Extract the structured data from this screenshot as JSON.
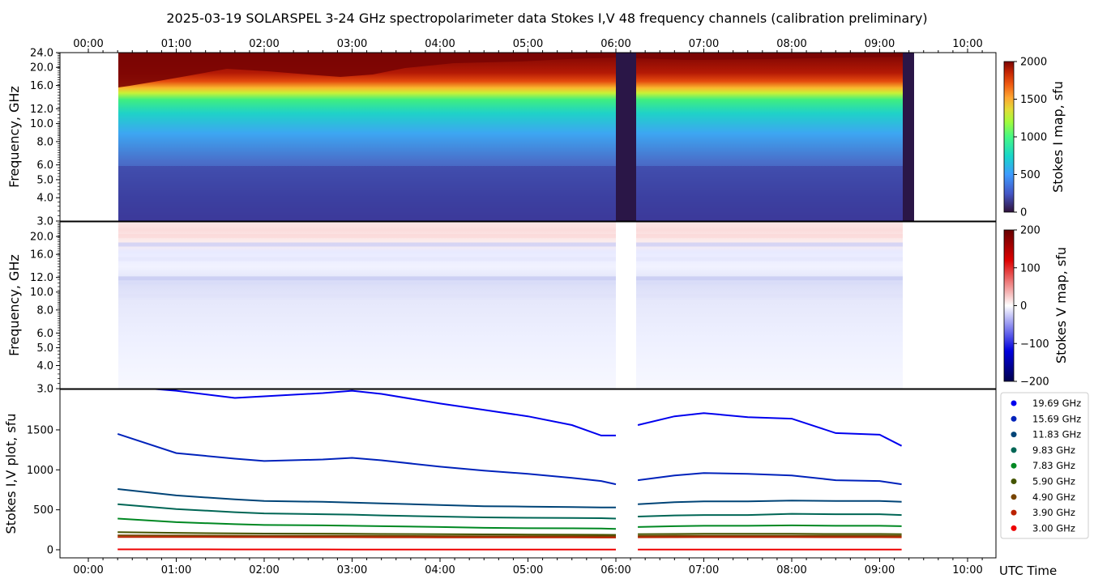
{
  "title": "2025-03-19  SOLARSPEL  3-24 GHz spectropolarimeter data   Stokes I,V   48 frequency channels   (calibration preliminary)",
  "time_ticks": [
    "00:00",
    "01:00",
    "02:00",
    "03:00",
    "04:00",
    "05:00",
    "06:00",
    "07:00",
    "08:00",
    "09:00",
    "10:00"
  ],
  "time_axis_label": "UTC Time",
  "colors": {
    "gap": "#2a1647",
    "legend_dots": [
      "#0000ee",
      "#0022bb",
      "#004477",
      "#006655",
      "#008822",
      "#445500",
      "#774400",
      "#bb2200",
      "#ee0000"
    ]
  },
  "chart_data": [
    {
      "type": "heatmap",
      "name": "Stokes I map",
      "ylabel": "Frequency, GHz",
      "yticks": [
        "3.0",
        "4.0",
        "5.0",
        "6.0",
        "8.0",
        "10.0",
        "12.0",
        "16.0",
        "20.0",
        "24.0"
      ],
      "ylim": [
        3.0,
        24.0
      ],
      "xlim": [
        "23:40",
        "10:20"
      ],
      "scale": "log",
      "colorbar_label": "Stokes I map, sfu",
      "colorbar_ticks": [
        "0",
        "500",
        "1000",
        "1500",
        "2000"
      ],
      "clim": [
        0,
        2000
      ],
      "data_start": "00:20",
      "data_end": "09:25",
      "gaps": [
        [
          "06:00",
          "06:14"
        ],
        [
          "09:17",
          "09:25"
        ]
      ]
    },
    {
      "type": "heatmap",
      "name": "Stokes V map",
      "ylabel": "Frequency, GHz",
      "yticks": [
        "3.0",
        "4.0",
        "5.0",
        "6.0",
        "8.0",
        "10.0",
        "12.0",
        "16.0",
        "20.0"
      ],
      "ylim": [
        3.0,
        24.0
      ],
      "scale": "log",
      "colorbar_label": "Stokes V map, sfu",
      "colorbar_ticks": [
        "200",
        "100",
        "0",
        "−100",
        "−200"
      ],
      "clim": [
        -200,
        200
      ]
    },
    {
      "type": "scatter",
      "name": "Stokes I,V plot",
      "ylabel": "Stokes I,V plot, sfu",
      "yticks": [
        "0",
        "500",
        "1000",
        "1500"
      ],
      "ylim": [
        -100,
        2000
      ],
      "x": [
        "00:20",
        "01:00",
        "01:40",
        "02:00",
        "02:40",
        "03:00",
        "03:20",
        "04:00",
        "04:30",
        "05:00",
        "05:30",
        "05:50",
        "06:00",
        "06:15",
        "06:40",
        "07:00",
        "07:30",
        "08:00",
        "08:30",
        "09:00",
        "09:15"
      ],
      "series": [
        {
          "name": "19.69 GHz",
          "values": [
            2050,
            1990,
            1900,
            1920,
            1960,
            1990,
            1950,
            1830,
            1750,
            1670,
            1560,
            1430,
            1430,
            1560,
            1670,
            1710,
            1660,
            1640,
            1460,
            1440,
            1300
          ]
        },
        {
          "name": "15.69 GHz",
          "values": [
            1450,
            1210,
            1140,
            1110,
            1130,
            1150,
            1120,
            1040,
            990,
            950,
            900,
            860,
            820,
            870,
            930,
            960,
            950,
            930,
            870,
            860,
            820
          ]
        },
        {
          "name": "11.83 GHz",
          "values": [
            760,
            680,
            630,
            610,
            600,
            590,
            580,
            560,
            545,
            540,
            535,
            530,
            530,
            570,
            595,
            605,
            605,
            615,
            610,
            610,
            600
          ]
        },
        {
          "name": "9.83 GHz",
          "values": [
            570,
            510,
            470,
            455,
            445,
            440,
            430,
            415,
            405,
            400,
            398,
            395,
            390,
            415,
            430,
            435,
            435,
            450,
            445,
            445,
            435
          ]
        },
        {
          "name": "7.83 GHz",
          "values": [
            390,
            345,
            320,
            310,
            305,
            300,
            295,
            285,
            275,
            270,
            268,
            265,
            260,
            285,
            295,
            300,
            300,
            305,
            300,
            300,
            295
          ]
        },
        {
          "name": "5.90 GHz",
          "values": [
            220,
            212,
            205,
            203,
            202,
            200,
            198,
            195,
            192,
            190,
            188,
            187,
            186,
            195,
            198,
            200,
            200,
            200,
            198,
            198,
            196
          ]
        },
        {
          "name": "4.90 GHz",
          "values": [
            180,
            178,
            176,
            175,
            175,
            174,
            173,
            171,
            170,
            170,
            169,
            168,
            168,
            172,
            174,
            175,
            175,
            175,
            174,
            174,
            173
          ]
        },
        {
          "name": "3.90 GHz",
          "values": [
            160,
            160,
            158,
            158,
            157,
            157,
            156,
            155,
            155,
            154,
            154,
            153,
            153,
            156,
            157,
            158,
            158,
            158,
            157,
            157,
            156
          ]
        },
        {
          "name": "3.00 GHz",
          "values": [
            5,
            5,
            4,
            4,
            4,
            3,
            3,
            3,
            2,
            2,
            2,
            2,
            2,
            3,
            3,
            3,
            3,
            3,
            3,
            3,
            2
          ]
        }
      ]
    }
  ]
}
